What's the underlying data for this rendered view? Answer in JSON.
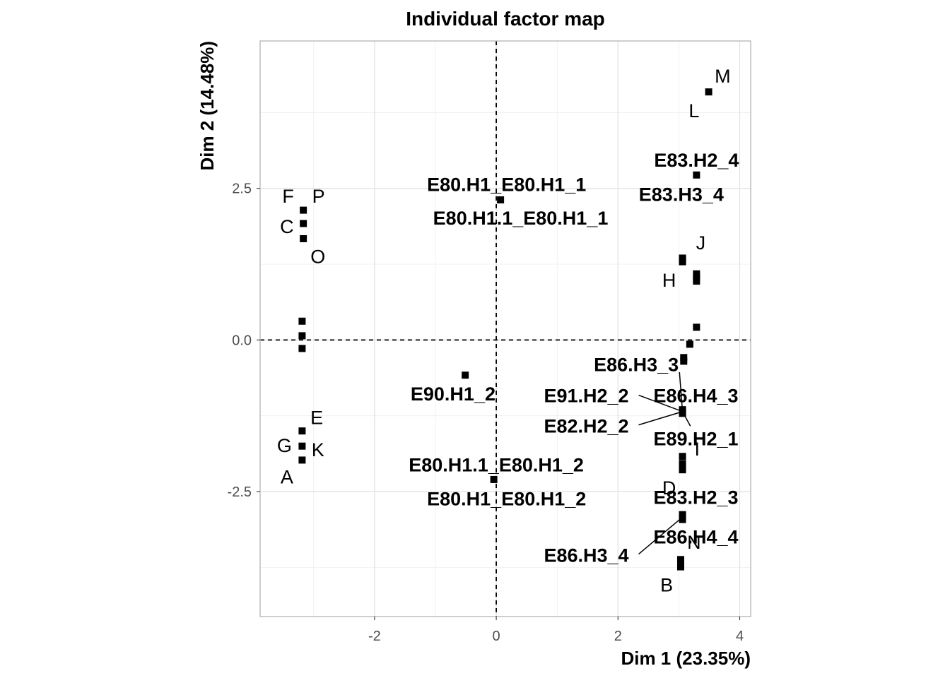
{
  "chart_data": {
    "type": "scatter",
    "title": "Individual factor map",
    "xlabel": "Dim 1 (23.35%)",
    "ylabel": "Dim 2 (14.48%)",
    "xlim": [
      -3.88,
      4.18
    ],
    "ylim": [
      -4.56,
      4.93
    ],
    "x_ticks": [
      {
        "value": -2,
        "label": "-2"
      },
      {
        "value": 0,
        "label": "0"
      },
      {
        "value": 2,
        "label": "2"
      },
      {
        "value": 4,
        "label": "4"
      }
    ],
    "y_ticks": [
      {
        "value": -2.5,
        "label": "-2.5"
      },
      {
        "value": 0,
        "label": "0.0"
      },
      {
        "value": 2.5,
        "label": "2.5"
      }
    ],
    "grid": true,
    "reference_lines": {
      "x": 0,
      "y": 0,
      "style": "dashed"
    },
    "marker_color": "#000000",
    "points": [
      {
        "x": -3.17,
        "y": 2.14
      },
      {
        "x": -3.17,
        "y": 1.92
      },
      {
        "x": -3.17,
        "y": 1.67
      },
      {
        "x": -3.19,
        "y": 0.31
      },
      {
        "x": -3.19,
        "y": 0.07
      },
      {
        "x": -3.19,
        "y": -0.14
      },
      {
        "x": -3.19,
        "y": -1.5
      },
      {
        "x": -3.19,
        "y": -1.75
      },
      {
        "x": -3.19,
        "y": -1.98
      },
      {
        "x": 0.07,
        "y": 2.31
      },
      {
        "x": -0.51,
        "y": -0.58
      },
      {
        "x": -0.04,
        "y": -2.3
      },
      {
        "x": 3.49,
        "y": 4.09
      },
      {
        "x": 3.29,
        "y": 2.72
      },
      {
        "x": 3.06,
        "y": 1.35
      },
      {
        "x": 3.06,
        "y": 1.32
      },
      {
        "x": 3.06,
        "y": 1.29
      },
      {
        "x": 3.29,
        "y": 1.09
      },
      {
        "x": 3.29,
        "y": 1.03
      },
      {
        "x": 3.29,
        "y": 0.97
      },
      {
        "x": 3.29,
        "y": 0.21
      },
      {
        "x": 3.18,
        "y": -0.07
      },
      {
        "x": 3.08,
        "y": -0.29
      },
      {
        "x": 3.08,
        "y": -0.35
      },
      {
        "x": 3.06,
        "y": -1.15
      },
      {
        "x": 3.06,
        "y": -1.18
      },
      {
        "x": 3.06,
        "y": -1.21
      },
      {
        "x": 3.06,
        "y": -1.92
      },
      {
        "x": 3.06,
        "y": -2.04
      },
      {
        "x": 3.06,
        "y": -2.14
      },
      {
        "x": 3.06,
        "y": -2.88
      },
      {
        "x": 3.06,
        "y": -2.96
      },
      {
        "x": 3.03,
        "y": -3.62
      },
      {
        "x": 3.03,
        "y": -3.68
      },
      {
        "x": 3.03,
        "y": -3.74
      }
    ],
    "labels": [
      {
        "text": "M",
        "x": 3.72,
        "y": 4.35,
        "bold": false
      },
      {
        "text": "L",
        "x": 3.25,
        "y": 3.78,
        "bold": false
      },
      {
        "text": "E83.H2_4",
        "x": 3.29,
        "y": 2.96,
        "bold": true
      },
      {
        "text": "E83.H3_4",
        "x": 3.04,
        "y": 2.4,
        "bold": true
      },
      {
        "text": "F",
        "x": -3.42,
        "y": 2.37,
        "bold": false
      },
      {
        "text": "P",
        "x": -2.92,
        "y": 2.37,
        "bold": false
      },
      {
        "text": "C",
        "x": -3.44,
        "y": 1.87,
        "bold": false
      },
      {
        "text": "O",
        "x": -2.93,
        "y": 1.37,
        "bold": false
      },
      {
        "text": "E80.H1_E80.H1_1",
        "x": 0.17,
        "y": 2.56,
        "bold": true
      },
      {
        "text": "E80.H1.1_E80.H1_1",
        "x": 0.4,
        "y": 2.01,
        "bold": true
      },
      {
        "text": "J",
        "x": 3.36,
        "y": 1.6,
        "bold": false
      },
      {
        "text": "H",
        "x": 2.84,
        "y": 0.98,
        "bold": false
      },
      {
        "text": "E86.H3_3",
        "x": 2.3,
        "y": -0.41,
        "bold": true
      },
      {
        "text": "E91.H2_2",
        "x": 1.48,
        "y": -0.92,
        "bold": true
      },
      {
        "text": "E86.H4_3",
        "x": 3.28,
        "y": -0.92,
        "bold": true
      },
      {
        "text": "E82.H2_2",
        "x": 1.48,
        "y": -1.42,
        "bold": true
      },
      {
        "text": "E89.H2_1",
        "x": 3.28,
        "y": -1.63,
        "bold": true
      },
      {
        "text": "I",
        "x": 3.3,
        "y": -1.8,
        "bold": false
      },
      {
        "text": "E",
        "x": -2.95,
        "y": -1.28,
        "bold": false
      },
      {
        "text": "G",
        "x": -3.48,
        "y": -1.74,
        "bold": false
      },
      {
        "text": "K",
        "x": -2.93,
        "y": -1.81,
        "bold": false
      },
      {
        "text": "A",
        "x": -3.44,
        "y": -2.26,
        "bold": false
      },
      {
        "text": "E90.H1_2",
        "x": -0.71,
        "y": -0.89,
        "bold": true
      },
      {
        "text": "E80.H1.1_E80.H1_2",
        "x": 0.0,
        "y": -2.06,
        "bold": true
      },
      {
        "text": "E80.H1_E80.H1_2",
        "x": 0.17,
        "y": -2.62,
        "bold": true
      },
      {
        "text": "D",
        "x": 2.84,
        "y": -2.44,
        "bold": false
      },
      {
        "text": "E83.H2_3",
        "x": 3.28,
        "y": -2.6,
        "bold": true
      },
      {
        "text": "E86.H4_4",
        "x": 3.28,
        "y": -3.25,
        "bold": true
      },
      {
        "text": "N",
        "x": 3.25,
        "y": -3.34,
        "bold": false
      },
      {
        "text": "E86.H3_4",
        "x": 1.48,
        "y": -3.55,
        "bold": true
      },
      {
        "text": "B",
        "x": 2.8,
        "y": -4.04,
        "bold": false
      }
    ],
    "leader_lines": [
      {
        "from": [
          3.06,
          -1.18
        ],
        "to": [
          3.01,
          -0.53
        ]
      },
      {
        "from": [
          3.06,
          -1.18
        ],
        "to": [
          2.34,
          -0.91
        ]
      },
      {
        "from": [
          3.06,
          -1.18
        ],
        "to": [
          3.19,
          -1.42
        ]
      },
      {
        "from": [
          3.06,
          -1.18
        ],
        "to": [
          2.34,
          -1.4
        ]
      },
      {
        "from": [
          3.06,
          -2.92
        ],
        "to": [
          2.34,
          -3.53
        ]
      }
    ]
  }
}
